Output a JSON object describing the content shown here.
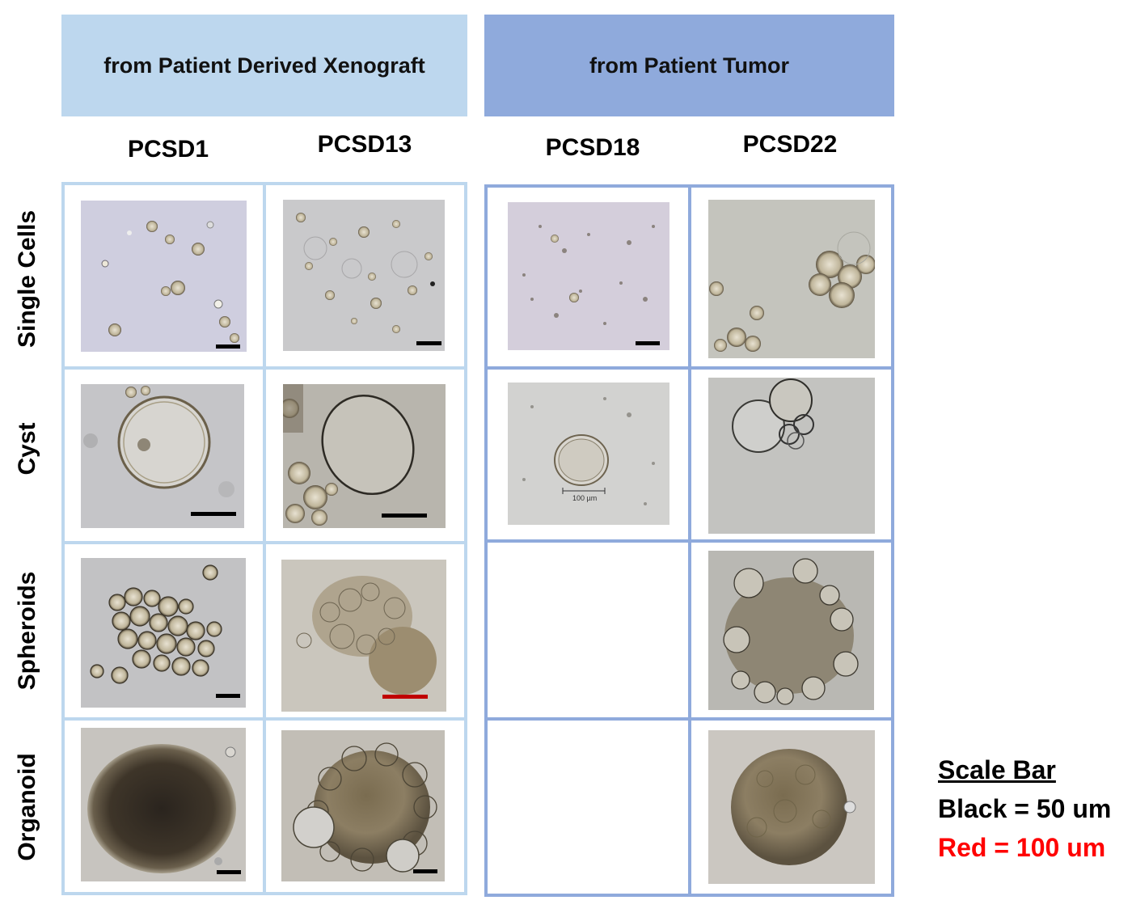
{
  "banners": {
    "left": "from Patient Derived Xenograft",
    "right": "from Patient Tumor"
  },
  "columns": [
    "PCSD1",
    "PCSD13",
    "PCSD18",
    "PCSD22"
  ],
  "rows": [
    "Single Cells",
    "Cyst",
    "Spheroids",
    "Organoid"
  ],
  "images": {
    "single_cells": [
      "PCSD1 single cells micrograph",
      "PCSD13 single cells micrograph",
      "PCSD18 single cells micrograph",
      "PCSD22 single cells micrograph"
    ],
    "cyst": [
      "PCSD1 cyst micrograph",
      "PCSD13 cyst micrograph",
      "PCSD18 cyst micrograph",
      "PCSD22 cyst micrograph"
    ],
    "spheroids": [
      "PCSD1 spheroids micrograph",
      "PCSD13 spheroids micrograph",
      "PCSD22 spheroids micrograph"
    ],
    "organoid": [
      "PCSD1 organoid micrograph",
      "PCSD13 organoid micrograph",
      "PCSD22 organoid micrograph"
    ]
  },
  "in_image_scale_label": "100 µm",
  "legend": {
    "title": "Scale Bar",
    "black": "Black = 50 um",
    "red": "Red = 100 um"
  },
  "colors": {
    "pdx_blue": "#bdd7ee",
    "tumor_blue": "#8faadc",
    "scale_black": "#000000",
    "scale_red": "#c00000",
    "legend_red": "#ff0000"
  }
}
